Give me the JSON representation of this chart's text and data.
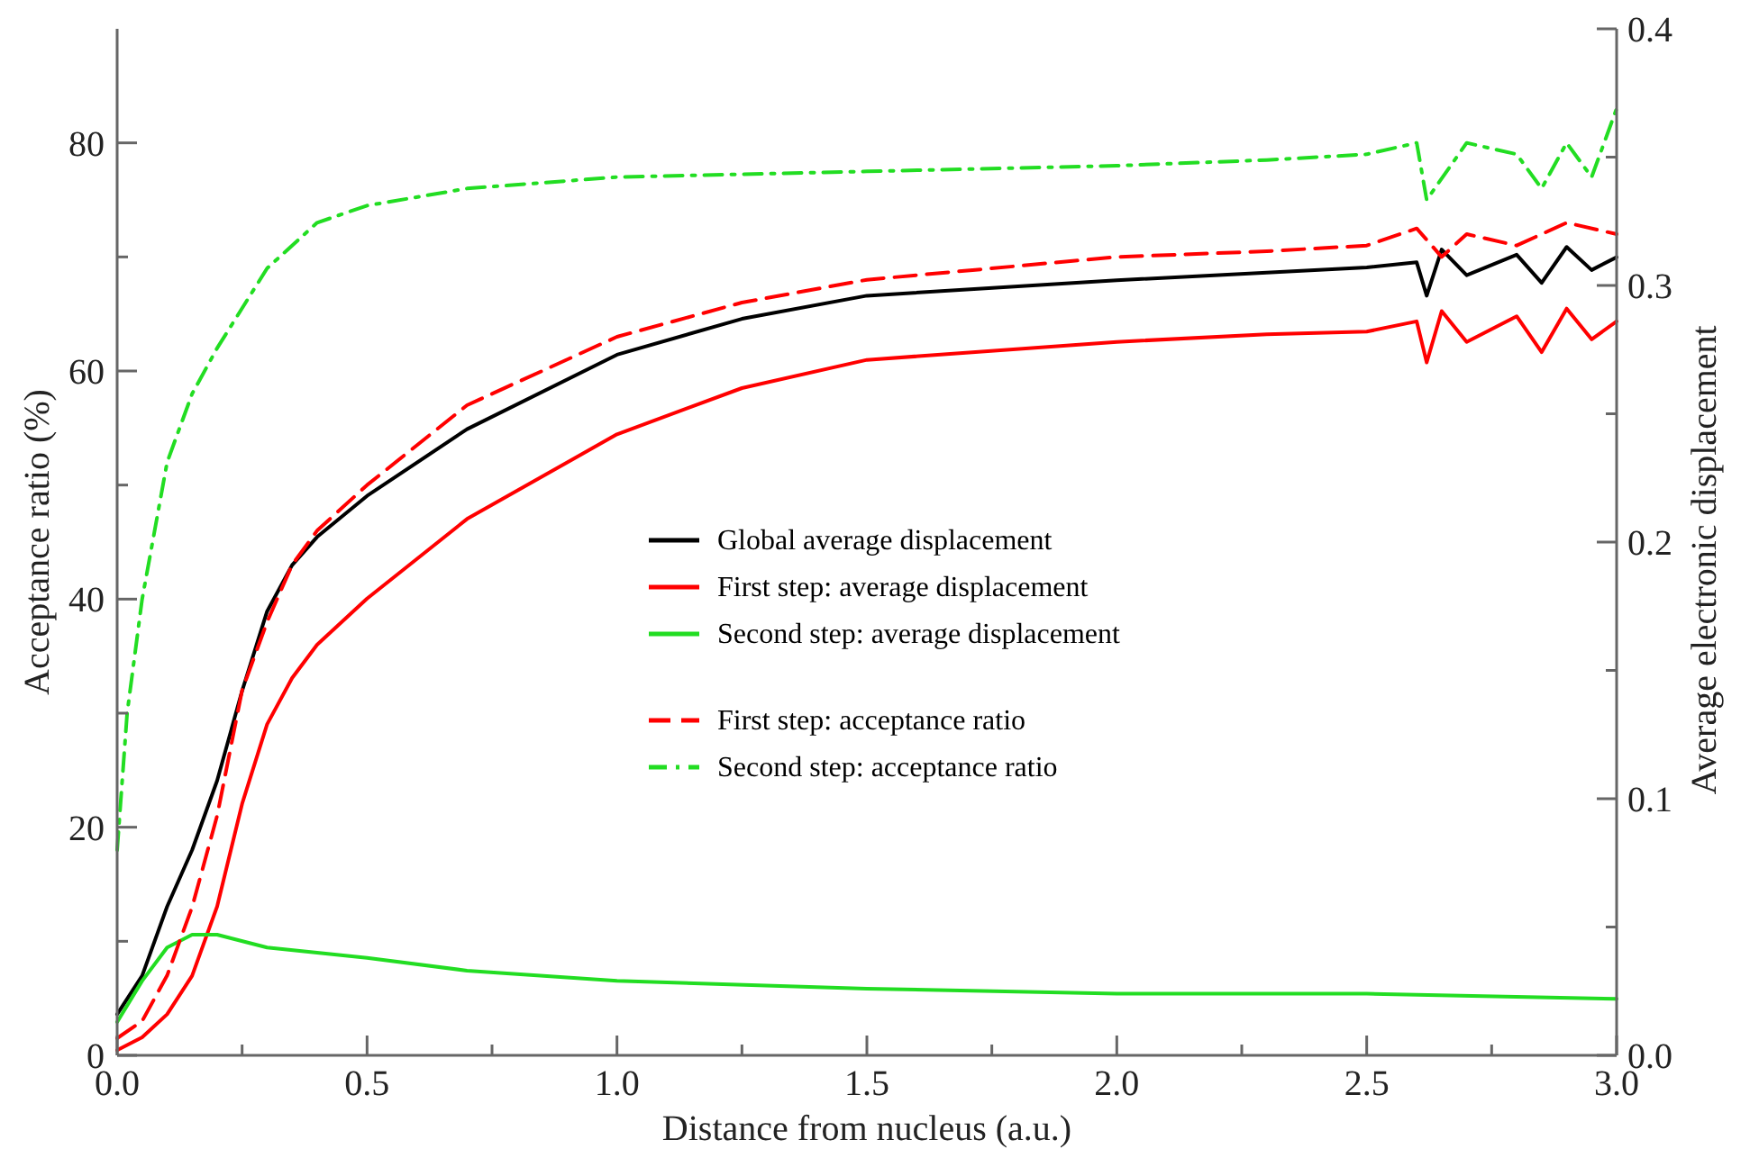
{
  "chart_data": {
    "type": "line",
    "xlabel": "Distance from nucleus (a.u.)",
    "ylabel": "Acceptance ratio (%)",
    "y2label": "Average electronic displacement",
    "xlim": [
      0,
      3
    ],
    "xticks": [
      {
        "value": 0,
        "label": "0.0"
      },
      {
        "value": 0.25,
        "label": null
      },
      {
        "value": 0.5,
        "label": "0.5"
      },
      {
        "value": 0.75,
        "label": null
      },
      {
        "value": 1,
        "label": "1.0"
      },
      {
        "value": 1.25,
        "label": null
      },
      {
        "value": 1.5,
        "label": "1.5"
      },
      {
        "value": 1.75,
        "label": null
      },
      {
        "value": 2,
        "label": "2.0"
      },
      {
        "value": 2.25,
        "label": null
      },
      {
        "value": 2.5,
        "label": "2.5"
      },
      {
        "value": 2.75,
        "label": null
      },
      {
        "value": 3,
        "label": "3.0"
      }
    ],
    "ylim": [
      0,
      90
    ],
    "yticks": [
      0,
      {
        "value": 10,
        "label": null
      },
      20,
      {
        "value": 30,
        "label": null
      },
      40,
      {
        "value": 50,
        "label": null
      },
      60,
      {
        "value": 70,
        "label": null
      },
      80
    ],
    "y2lim": [
      0,
      0.4
    ],
    "y2ticks": [
      {
        "value": 0,
        "label": "0.0"
      },
      {
        "value": 0.05,
        "label": null
      },
      0.1,
      {
        "value": 0.15,
        "label": null
      },
      0.2,
      {
        "value": 0.25,
        "label": null
      },
      0.3,
      {
        "value": 0.35,
        "label": null
      },
      0.4
    ],
    "legend": "center",
    "grid": false,
    "marker": "none",
    "series": [
      {
        "name": "Global average displacement",
        "color": "#000000",
        "axis": "y2",
        "line_style": "solid",
        "x": [
          0,
          0.05,
          0.1,
          0.15,
          0.2,
          0.25,
          0.3,
          0.35,
          0.4,
          0.5,
          0.7,
          1.0,
          1.25,
          1.5,
          2.0,
          2.3,
          2.5,
          2.6,
          2.62,
          2.65,
          2.7,
          2.8,
          2.85,
          2.9,
          2.95,
          3.0
        ],
        "values": [
          0.016,
          0.031,
          0.058,
          0.08,
          0.107,
          0.142,
          0.173,
          0.191,
          0.202,
          0.218,
          0.244,
          0.273,
          0.287,
          0.296,
          0.302,
          0.305,
          0.307,
          0.309,
          0.296,
          0.314,
          0.304,
          0.312,
          0.301,
          0.315,
          0.306,
          0.311
        ]
      },
      {
        "name": "First step: average displacement",
        "color": "#ff0000",
        "axis": "y2",
        "line_style": "solid",
        "x": [
          0,
          0.05,
          0.1,
          0.15,
          0.2,
          0.25,
          0.3,
          0.35,
          0.4,
          0.5,
          0.7,
          1.0,
          1.25,
          1.5,
          2.0,
          2.3,
          2.5,
          2.6,
          2.62,
          2.65,
          2.7,
          2.8,
          2.85,
          2.9,
          2.95,
          3.0
        ],
        "values": [
          0.002,
          0.007,
          0.016,
          0.031,
          0.058,
          0.098,
          0.129,
          0.147,
          0.16,
          0.178,
          0.209,
          0.242,
          0.26,
          0.271,
          0.278,
          0.281,
          0.282,
          0.286,
          0.27,
          0.29,
          0.278,
          0.288,
          0.274,
          0.291,
          0.279,
          0.286
        ]
      },
      {
        "name": "Second step: average displacement",
        "color": "#22dd22",
        "axis": "y2",
        "line_style": "solid",
        "x": [
          0,
          0.05,
          0.1,
          0.15,
          0.2,
          0.3,
          0.5,
          0.7,
          1.0,
          1.5,
          2.0,
          2.5,
          3.0
        ],
        "values": [
          0.013,
          0.029,
          0.042,
          0.047,
          0.047,
          0.042,
          0.038,
          0.033,
          0.029,
          0.026,
          0.024,
          0.024,
          0.022
        ]
      },
      {
        "name": "First step: acceptance ratio",
        "color": "#ff0000",
        "axis": "y",
        "line_style": "dashed",
        "x": [
          0,
          0.05,
          0.1,
          0.15,
          0.2,
          0.25,
          0.3,
          0.35,
          0.4,
          0.5,
          0.7,
          1.0,
          1.25,
          1.5,
          2.0,
          2.3,
          2.5,
          2.6,
          2.65,
          2.7,
          2.8,
          2.9,
          3.0
        ],
        "values": [
          1.5,
          3,
          7,
          13,
          21,
          32,
          38,
          43,
          46,
          50,
          57,
          63,
          66,
          68,
          70,
          70.5,
          71,
          72.5,
          70,
          72,
          71,
          73,
          72
        ]
      },
      {
        "name": "Second step: acceptance ratio",
        "color": "#22dd22",
        "axis": "y",
        "line_style": "dashdot",
        "x": [
          0,
          0.02,
          0.05,
          0.1,
          0.15,
          0.2,
          0.3,
          0.4,
          0.5,
          0.7,
          1.0,
          1.5,
          2.0,
          2.3,
          2.5,
          2.6,
          2.62,
          2.7,
          2.8,
          2.85,
          2.9,
          2.95,
          3.0
        ],
        "values": [
          18,
          30,
          40,
          52,
          58,
          62,
          69,
          73,
          74.5,
          76,
          77,
          77.5,
          78,
          78.5,
          79,
          80,
          75,
          80,
          79,
          76,
          80,
          77,
          83
        ]
      }
    ]
  }
}
